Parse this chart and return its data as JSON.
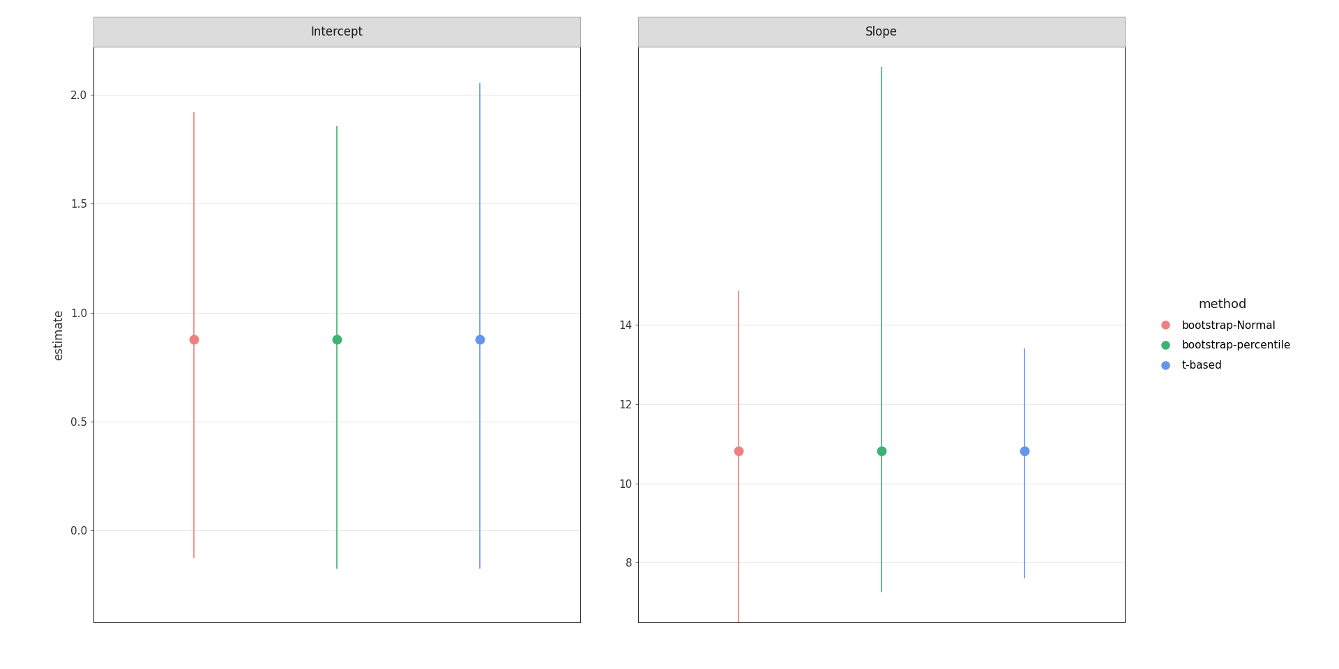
{
  "panels": [
    "Intercept",
    "Slope"
  ],
  "methods": [
    "bootstrap-Normal",
    "bootstrap-percentile",
    "t-based"
  ],
  "colors": [
    "#F08080",
    "#3CB371",
    "#6495ED"
  ],
  "x_positions": [
    1,
    2,
    3
  ],
  "intercept": {
    "estimates": [
      0.878,
      0.878,
      0.878
    ],
    "lower": [
      -0.125,
      -0.175,
      -0.175
    ],
    "upper": [
      1.92,
      1.855,
      2.055
    ]
  },
  "slope": {
    "estimates": [
      10.82,
      10.82,
      10.82
    ],
    "lower": [
      6.5,
      7.25,
      7.6
    ],
    "upper": [
      14.85,
      20.5,
      13.4
    ]
  },
  "intercept_ylim": [
    -0.42,
    2.22
  ],
  "slope_ylim": [
    6.5,
    21.0
  ],
  "intercept_yticks": [
    0.0,
    0.5,
    1.0,
    1.5,
    2.0
  ],
  "slope_yticks": [
    8,
    10,
    12,
    14
  ],
  "ylabel": "estimate",
  "legend_title": "method",
  "strip_bg": "#DCDCDC",
  "strip_border": "#aaaaaa",
  "plot_bg": "#ffffff",
  "grid_color": "#e8e8e8",
  "marker_size": 9,
  "line_width": 1.2,
  "strip_fontsize": 12,
  "axis_label_fontsize": 12,
  "tick_fontsize": 11,
  "legend_fontsize": 11,
  "legend_title_fontsize": 13
}
